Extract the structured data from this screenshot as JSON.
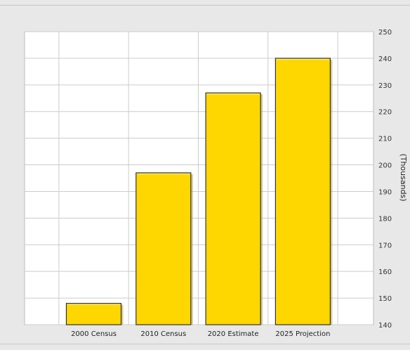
{
  "colors": {
    "bar_fill": "#ffd700",
    "bar_outline": "#333333",
    "plot_bg": "#ffffff",
    "grid": "#cccccc",
    "page_bg": "#e8e8e8"
  },
  "chart_data": {
    "type": "bar",
    "categories": [
      "2000 Census",
      "2010 Census",
      "2020 Estimate",
      "2025 Projection"
    ],
    "values": [
      148,
      197,
      227,
      240
    ],
    "ylabel": "(Thousands)",
    "ylim": [
      140,
      250
    ],
    "yticks": [
      "140",
      "150",
      "160",
      "170",
      "180",
      "190",
      "200",
      "210",
      "220",
      "230",
      "240",
      "250"
    ],
    "y_axis_side": "right",
    "grid": true
  }
}
